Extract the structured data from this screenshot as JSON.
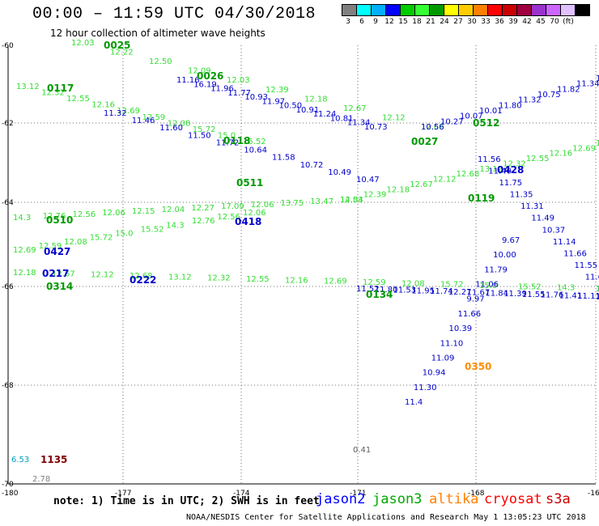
{
  "header": {
    "title": "00:00 – 11:59 UTC 04/30/2018",
    "subtitle": "12 hour collection of altimeter wave heights"
  },
  "legend": {
    "colors": [
      "#808080",
      "#00ffff",
      "#00b0ff",
      "#0000ff",
      "#00cc00",
      "#33ff33",
      "#009900",
      "#ffff00",
      "#ffcc00",
      "#ff8000",
      "#ff0000",
      "#cc0000",
      "#a00040",
      "#9933cc",
      "#cc66ff",
      "#e0c0ff",
      "#000000"
    ],
    "labels": [
      "3",
      "6",
      "9",
      "12",
      "15",
      "18",
      "21",
      "24",
      "27",
      "30",
      "33",
      "36",
      "39",
      "42",
      "45",
      "70",
      "(ft)"
    ]
  },
  "axes": {
    "lat_labels": [
      "-60",
      "-62",
      "-64",
      "-66",
      "-68",
      "-70"
    ],
    "lon_labels": [
      "-180",
      "-177",
      "-174",
      "-171",
      "-168",
      "-16"
    ]
  },
  "tracks": [
    {
      "name": "jason2",
      "color": "#0000cc",
      "labels": [
        "11.16",
        "16.19",
        "11.96",
        "11.77",
        "10.93",
        "11.97",
        "10.50",
        "10.91",
        "11.24",
        "10.81",
        "11.34",
        "10.73",
        "11.32",
        "11.46",
        "11.60",
        "11.50",
        "11.72",
        "10.64",
        "11.58",
        "10.72",
        "10.49",
        "10.47",
        "10.56",
        "10.27",
        "10.07",
        "10.01",
        "11.80",
        "11.32",
        "10.75",
        "11.82",
        "11.34",
        "12.09",
        "11.56",
        "11.40",
        "11.75",
        "11.35",
        "11.31",
        "11.49",
        "10.37",
        "11.14",
        "11.66",
        "11.55",
        "11.60",
        "10.67",
        "11.52",
        "11.80",
        "11.53",
        "11.95",
        "11.74",
        "12.27",
        "11.67",
        "11.84",
        "11.39",
        "11.55",
        "11.76",
        "11.41",
        "11.11",
        "10.39",
        "9.67",
        "10.00",
        "11.79",
        "11.06",
        "9.97",
        "11.66",
        "10.39",
        "11.10",
        "11.09",
        "10.94",
        "11.30",
        "11.4",
        "11.61"
      ]
    },
    {
      "name": "jason3",
      "color": "#009900",
      "labels": [
        "0025",
        "0026",
        "0117",
        "0118",
        "0511",
        "0027",
        "0512",
        "0119",
        "0510",
        "0427",
        "0428",
        "0418",
        "0134",
        "0218"
      ]
    },
    {
      "name": "light",
      "color": "#33dd33",
      "labels": [
        "12.03",
        "12.22",
        "12.50",
        "12.09",
        "12.03",
        "12.39",
        "12.18",
        "12.67",
        "12.12",
        "12.68",
        "13.12",
        "12.32",
        "12.55",
        "12.16",
        "12.69",
        "12.59",
        "12.08",
        "15.72",
        "15.0",
        "15.52",
        "14.3",
        "12.76",
        "12.56",
        "12.06",
        "12.15",
        "12.04",
        "12.27",
        "17.09",
        "12.06",
        "13.75",
        "13.47",
        "14.54"
      ]
    }
  ],
  "codes": {
    "c0025": "0025",
    "c0026": "0026",
    "c0117": "0117",
    "c0118": "0118",
    "c0511": "0511",
    "c0027": "0027",
    "c0512": "0512",
    "c0119": "0119",
    "c0510": "0510",
    "c0427": "0427",
    "c0418": "0418",
    "c0428": "0428",
    "c0134": "0134",
    "c0350": "0350",
    "c1135": "1135",
    "c0217": "0217",
    "c0222": "0222",
    "c0314": "0314"
  },
  "misc": {
    "val_653": "6.53",
    "val_278": "2.78",
    "val_041": "0.41"
  },
  "footer": {
    "note": "note: 1) Time is in UTC; 2) SWH is in feet",
    "satellites": [
      {
        "name": "jason2",
        "color": "#0000ff"
      },
      {
        "name": "jason3",
        "color": "#00aa00"
      },
      {
        "name": "altika",
        "color": "#ff8000"
      },
      {
        "name": "cryosat",
        "color": "#ff0000"
      },
      {
        "name": "s3a",
        "color": "#cc0000"
      }
    ],
    "credit": "NOAA/NESDIS Center for Satellite Applications and Research   May  1 13:05:23 UTC 2018"
  }
}
